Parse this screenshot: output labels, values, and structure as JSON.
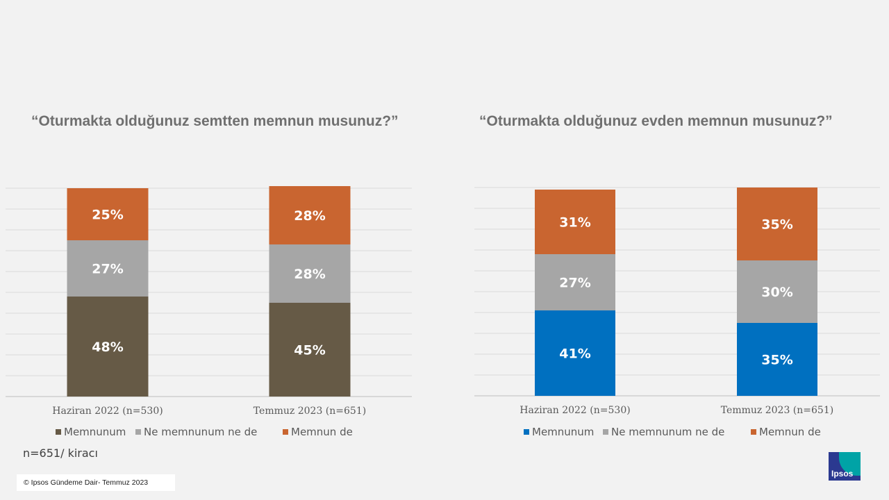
{
  "colors": {
    "memnunum_left": "#665a46",
    "memnunum_right": "#0070c0",
    "neutral": "#a6a6a6",
    "memnun_de": "#c96530"
  },
  "chart_data": [
    {
      "type": "bar",
      "stacked": true,
      "title": "“Oturmakta olduğunuz semtten memnun musunuz?”",
      "categories": [
        "Haziran 2022 (n=530)",
        "Temmuz 2023 (n=651)"
      ],
      "series": [
        {
          "name": "Memnunum",
          "values": [
            48,
            45
          ],
          "labels": [
            "48%",
            "45%"
          ]
        },
        {
          "name": "Ne memnunum ne de",
          "values": [
            27,
            28
          ],
          "labels": [
            "27%",
            "28%"
          ]
        },
        {
          "name": "Memnun de",
          "values": [
            25,
            28
          ],
          "labels": [
            "25%",
            "28%"
          ]
        }
      ],
      "ylim": [
        0,
        100
      ],
      "grid": true,
      "legend_position": "bottom"
    },
    {
      "type": "bar",
      "stacked": true,
      "title": "“Oturmakta olduğunuz evden memnun musunuz?”",
      "categories": [
        "Haziran 2022 (n=530)",
        "Temmuz 2023 (n=651)"
      ],
      "series": [
        {
          "name": "Memnunum",
          "values": [
            41,
            35
          ],
          "labels": [
            "41%",
            "35%"
          ]
        },
        {
          "name": "Ne memnunum ne de",
          "values": [
            27,
            30
          ],
          "labels": [
            "27%",
            "30%"
          ]
        },
        {
          "name": "Memnun de",
          "values": [
            31,
            35
          ],
          "labels": [
            "31%",
            "35%"
          ]
        }
      ],
      "ylim": [
        0,
        100
      ],
      "grid": true,
      "legend_position": "bottom"
    }
  ],
  "sample_note": "n=651/ kiracı",
  "footer": "© Ipsos Gündeme Dair- Temmuz 2023",
  "logo": {
    "text": "Ipsos"
  }
}
